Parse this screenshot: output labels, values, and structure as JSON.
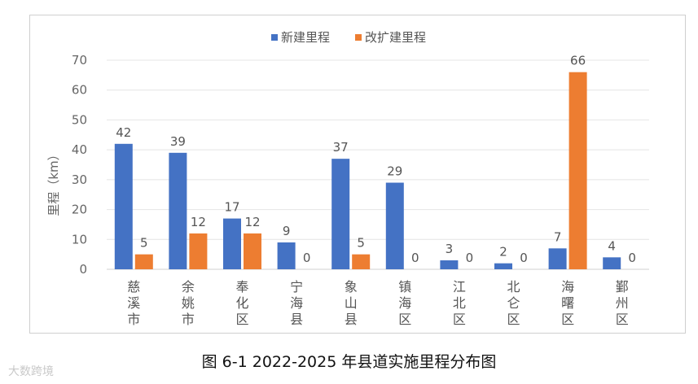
{
  "caption": "图 6-1    2022-2025 年县道实施里程分布图",
  "watermark": "大数跨境",
  "chart_data": {
    "type": "bar",
    "categories": [
      "慈溪市",
      "余姚市",
      "奉化区",
      "宁海县",
      "象山县",
      "镇海区",
      "江北区",
      "北仑区",
      "海曙区",
      "鄞州区"
    ],
    "series": [
      {
        "name": "新建里程",
        "values": [
          42,
          39,
          17,
          9,
          37,
          29,
          3,
          2,
          7,
          4
        ],
        "color": "#4472C4"
      },
      {
        "name": "改扩建里程",
        "values": [
          5,
          12,
          12,
          0,
          5,
          0,
          0,
          0,
          66,
          0
        ],
        "color": "#ED7D31"
      }
    ],
    "ylabel": "里程（km）",
    "ylim": [
      0,
      70
    ],
    "yticks": [
      0,
      10,
      20,
      30,
      40,
      50,
      60,
      70
    ],
    "grid": true,
    "legend_position": "top"
  }
}
